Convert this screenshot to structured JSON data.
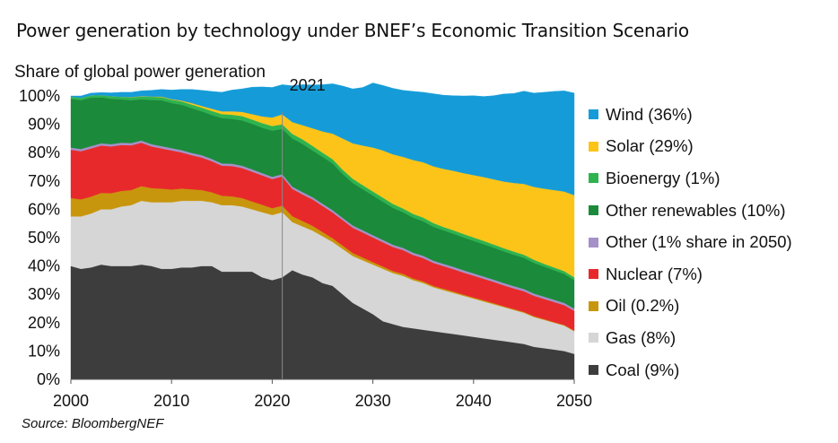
{
  "header": {
    "title": "Power generation by technology under BNEF’s Economic Transition Scenario",
    "source": "Source: BloombergNEF"
  },
  "chart_data": {
    "type": "area",
    "stacked": true,
    "title": "Power generation by technology under BNEF’s Economic Transition Scenario",
    "ylabel": "Share of global power generation",
    "xlabel": "",
    "xlim": [
      2000,
      2050
    ],
    "ylim": [
      0,
      100
    ],
    "x_ticks": [
      "2000",
      "2010",
      "2020",
      "2030",
      "2040",
      "2050"
    ],
    "y_ticks": [
      "0%",
      "10%",
      "20%",
      "30%",
      "40%",
      "50%",
      "60%",
      "70%",
      "80%",
      "90%",
      "100%"
    ],
    "annotation": {
      "x": 2021,
      "label": "2021"
    },
    "legend_position": "right",
    "x": [
      2000,
      2001,
      2002,
      2003,
      2004,
      2005,
      2006,
      2007,
      2008,
      2009,
      2010,
      2011,
      2012,
      2013,
      2014,
      2015,
      2016,
      2017,
      2018,
      2019,
      2020,
      2021,
      2022,
      2023,
      2024,
      2025,
      2026,
      2027,
      2028,
      2029,
      2030,
      2031,
      2032,
      2033,
      2034,
      2035,
      2036,
      2037,
      2038,
      2039,
      2040,
      2041,
      2042,
      2043,
      2044,
      2045,
      2046,
      2047,
      2048,
      2049,
      2050
    ],
    "series": [
      {
        "name": "Coal (9%)",
        "color": "#3d3d3d",
        "values": [
          40,
          39,
          39.5,
          40.5,
          40,
          40,
          40,
          40.5,
          40,
          39,
          39,
          39.5,
          39.5,
          40,
          40,
          38,
          38,
          38,
          38,
          36,
          35,
          36,
          38.5,
          37,
          36,
          34,
          33,
          30,
          27,
          25,
          23,
          20.5,
          19.5,
          18.5,
          18,
          17.5,
          17,
          16.5,
          16,
          15.5,
          15,
          14.5,
          14,
          13.5,
          13,
          12.5,
          11.5,
          11,
          10.5,
          10,
          9
        ]
      },
      {
        "name": "Gas (8%)",
        "color": "#d6d6d6",
        "values": [
          17.5,
          18.5,
          19,
          19.5,
          20,
          21,
          21.5,
          22.5,
          22.5,
          23.5,
          23.5,
          23.5,
          23.5,
          23,
          22.5,
          23.5,
          23.5,
          23,
          22,
          23,
          23,
          23,
          17,
          17,
          16.5,
          16.5,
          15.5,
          16,
          16.5,
          17,
          17.5,
          18.5,
          18,
          18,
          17,
          16.5,
          15.5,
          15,
          14.5,
          14,
          13.5,
          13,
          12.5,
          12,
          11.5,
          11,
          10.5,
          10,
          9.5,
          9,
          8
        ]
      },
      {
        "name": "Oil (0.2%)",
        "color": "#c8960c",
        "values": [
          6.5,
          6,
          6,
          5.8,
          5.7,
          5.5,
          5.3,
          5.2,
          5,
          4.8,
          4.5,
          4.3,
          4.1,
          3.8,
          3.5,
          3.3,
          3.1,
          3,
          2.8,
          2.6,
          2.4,
          2.3,
          2.1,
          1.9,
          1.7,
          1.5,
          1.3,
          1.2,
          1.1,
          1,
          0.9,
          0.8,
          0.7,
          0.7,
          0.6,
          0.6,
          0.5,
          0.5,
          0.5,
          0.4,
          0.4,
          0.4,
          0.4,
          0.3,
          0.3,
          0.3,
          0.3,
          0.3,
          0.2,
          0.2,
          0.2
        ]
      },
      {
        "name": "Nuclear (7%)",
        "color": "#e8292b",
        "values": [
          17,
          17,
          17,
          16.7,
          16.5,
          16.2,
          15.8,
          15.3,
          14.7,
          14.2,
          13.8,
          12.8,
          12,
          11.5,
          11,
          10.6,
          10.7,
          10.6,
          10.5,
          10.4,
          10.3,
          10.3,
          9.6,
          9.4,
          9.3,
          9.2,
          9.1,
          9,
          8.9,
          8.8,
          8.7,
          8.6,
          8.5,
          8.4,
          8.3,
          8.2,
          8.1,
          8,
          7.9,
          7.8,
          7.7,
          7.6,
          7.5,
          7.4,
          7.3,
          7.3,
          7.2,
          7.1,
          7.1,
          7,
          7
        ]
      },
      {
        "name": "Other (1% share in 2050)",
        "color": "#a590c8",
        "values": [
          0.8,
          0.8,
          0.8,
          0.8,
          0.8,
          0.8,
          0.8,
          0.8,
          0.8,
          0.8,
          0.8,
          0.8,
          0.8,
          0.8,
          0.8,
          0.8,
          0.8,
          0.8,
          0.8,
          0.8,
          0.8,
          0.8,
          0.8,
          0.8,
          0.8,
          0.8,
          0.8,
          0.8,
          0.8,
          0.8,
          0.8,
          0.8,
          0.8,
          0.8,
          0.8,
          0.8,
          0.8,
          0.8,
          0.8,
          0.8,
          0.8,
          0.8,
          0.8,
          0.8,
          0.8,
          0.8,
          0.8,
          0.8,
          0.8,
          0.8,
          0.8
        ]
      },
      {
        "name": "Other renewables (10%)",
        "color": "#1b8a3b",
        "values": [
          17.2,
          17.2,
          17.1,
          16.2,
          16,
          15.3,
          15.1,
          14.5,
          15.6,
          16.2,
          15.9,
          16,
          15.8,
          15.5,
          15.5,
          16,
          15.8,
          16,
          16.1,
          16,
          16.3,
          16,
          17,
          17,
          16.5,
          16.5,
          16.5,
          15.5,
          15,
          14.5,
          14,
          13.5,
          13,
          12.6,
          12.4,
          12.2,
          12,
          11.8,
          11.7,
          11.6,
          11.5,
          11.4,
          11.3,
          11.2,
          11.1,
          11,
          10.8,
          10.6,
          10.4,
          10.2,
          10
        ]
      },
      {
        "name": "Bioenergy (1%)",
        "color": "#2eb34f",
        "values": [
          0.7,
          0.8,
          0.8,
          0.8,
          0.9,
          0.9,
          1,
          1,
          1.1,
          1.1,
          1.2,
          1.2,
          1.3,
          1.3,
          1.4,
          1.4,
          1.5,
          1.5,
          1.5,
          1.6,
          1.6,
          1.6,
          1.6,
          1.6,
          1.6,
          1.5,
          1.5,
          1.5,
          1.5,
          1.4,
          1.4,
          1.4,
          1.4,
          1.3,
          1.3,
          1.3,
          1.3,
          1.2,
          1.2,
          1.2,
          1.2,
          1.2,
          1.1,
          1.1,
          1.1,
          1.1,
          1.1,
          1,
          1,
          1,
          1
        ]
      },
      {
        "name": "Solar (29%)",
        "color": "#fcc419",
        "values": [
          0,
          0,
          0,
          0,
          0,
          0,
          0.1,
          0.1,
          0.1,
          0.2,
          0.2,
          0.3,
          0.5,
          0.6,
          0.8,
          1,
          1.2,
          1.5,
          1.9,
          2.4,
          3,
          3.5,
          4.2,
          5,
          6.2,
          7.5,
          9,
          11,
          12.5,
          14,
          15.5,
          16.7,
          17.5,
          18.2,
          19,
          19.5,
          20,
          20.5,
          21,
          21.5,
          22,
          22.5,
          23,
          23.5,
          24.2,
          25,
          25.7,
          26.5,
          27.3,
          28.1,
          29
        ]
      },
      {
        "name": "Wind (36%)",
        "color": "#159cd8",
        "values": [
          0.3,
          0.7,
          0.8,
          0.9,
          1.2,
          1.6,
          1.7,
          1.9,
          2.2,
          2.5,
          3.2,
          3.9,
          4.8,
          5.5,
          6.1,
          6.7,
          7.5,
          8.1,
          9.5,
          10.4,
          10.6,
          10.5,
          12.8,
          14.3,
          15.3,
          16.5,
          17.6,
          18.5,
          19.2,
          20.5,
          22.8,
          22.9,
          23.3,
          23.5,
          24.2,
          24.7,
          25.6,
          26,
          26.5,
          27.2,
          28,
          28.4,
          29.5,
          30.9,
          31.6,
          32.7,
          33.1,
          34,
          34.8,
          35.5,
          36
        ]
      }
    ]
  }
}
